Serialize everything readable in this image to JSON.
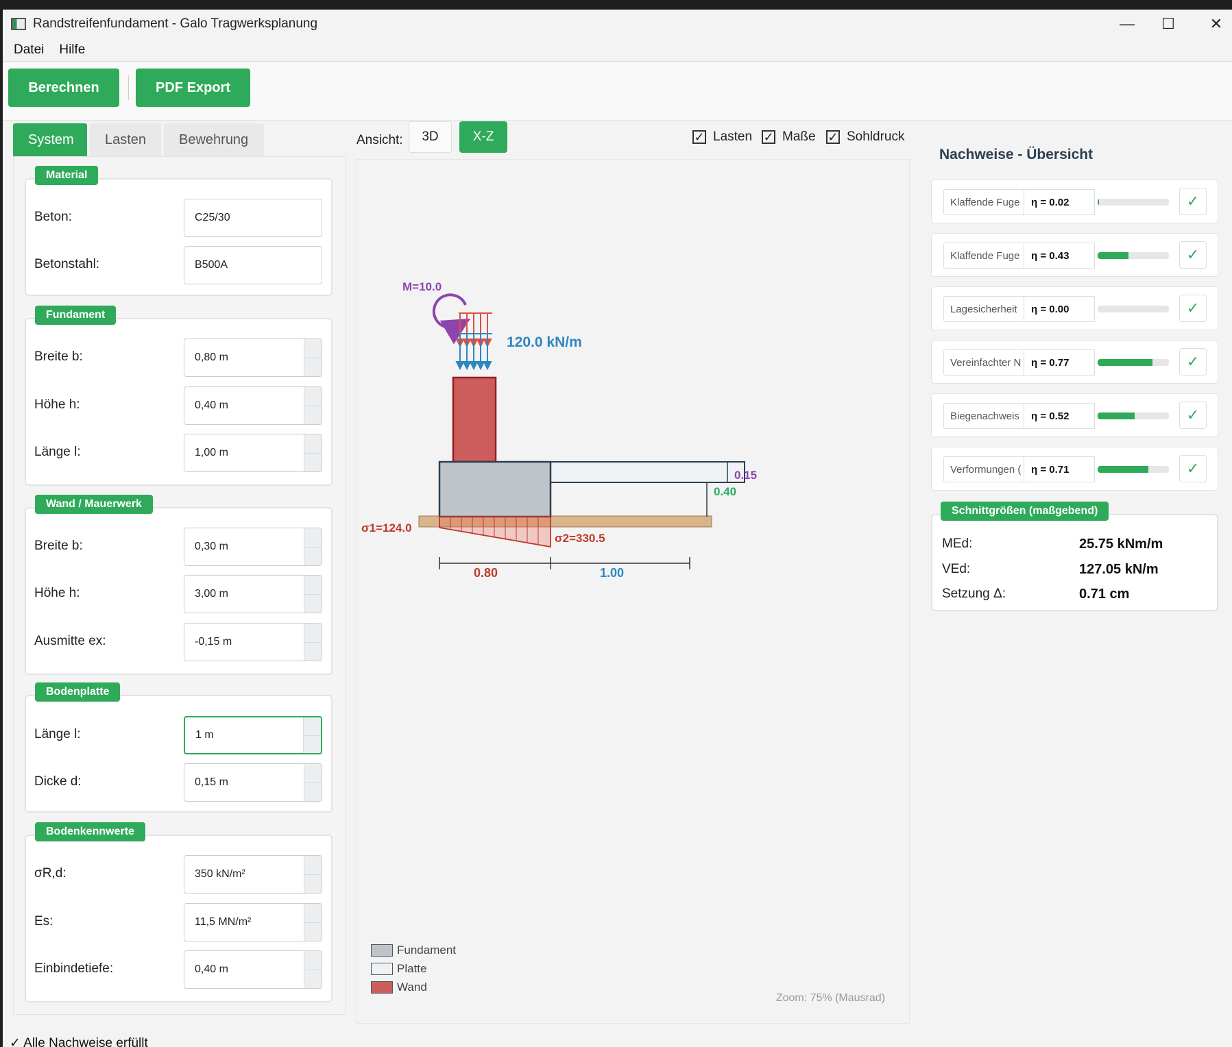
{
  "window": {
    "title": "Randstreifenfundament - Galo Tragwerksplanung",
    "minimize": "—",
    "maximize": "☐",
    "close": "✕"
  },
  "menu": {
    "file": "Datei",
    "help": "Hilfe"
  },
  "toolbar": {
    "calculate": "Berechnen",
    "pdf_export": "PDF Export"
  },
  "tabs": [
    "System",
    "Lasten",
    "Bewehrung"
  ],
  "groups": {
    "material": {
      "label": "Material",
      "fields": [
        {
          "label": "Beton:",
          "value": "C25/30"
        },
        {
          "label": "Betonstahl:",
          "value": "B500A"
        }
      ]
    },
    "fundament": {
      "label": "Fundament",
      "fields": [
        {
          "label": "Breite b:",
          "value": "0,80 m"
        },
        {
          "label": "Höhe h:",
          "value": "0,40 m"
        },
        {
          "label": "Länge l:",
          "value": "1,00 m"
        }
      ]
    },
    "wand": {
      "label": "Wand / Mauerwerk",
      "fields": [
        {
          "label": "Breite b:",
          "value": "0,30 m"
        },
        {
          "label": "Höhe h:",
          "value": "3,00 m"
        },
        {
          "label": "Ausmitte ex:",
          "value": "-0,15 m"
        }
      ]
    },
    "bodenplatte": {
      "label": "Bodenplatte",
      "fields": [
        {
          "label": "Länge l:",
          "value": "1 m"
        },
        {
          "label": "Dicke d:",
          "value": "0,15 m"
        }
      ]
    },
    "boden": {
      "label": "Bodenkennwerte",
      "fields": [
        {
          "label": "σR,d:",
          "value": "350 kN/m²"
        },
        {
          "label": "Es:",
          "value": "11,5 MN/m²"
        },
        {
          "label": "Einbindetiefe:",
          "value": "0,40 m"
        }
      ]
    }
  },
  "view": {
    "label": "Ansicht:",
    "btn_3d": "3D",
    "btn_xz": "X-Z"
  },
  "checkboxes": [
    {
      "label": "Lasten",
      "checked": true
    },
    {
      "label": "Maße",
      "checked": true
    },
    {
      "label": "Sohldruck",
      "checked": true
    }
  ],
  "diagram": {
    "moment": "M=10.0",
    "load": "120.0 kN/m",
    "sigma1": "σ1=124.0",
    "sigma2": "σ2=330.5",
    "dim_slab_thickness": "0.15",
    "dim_height": "0.40",
    "dim_width_fundament": "0.80",
    "dim_length_slab": "1.00",
    "colors": {
      "fundament": "#bfc4c9",
      "platte": "#eef2f5",
      "wand": "#cd5c5c",
      "soil": "#d9b48a",
      "load_red": "#e74c3c",
      "load_blue": "#2e86c1",
      "moment": "#8e44ad",
      "green": "#27ae60"
    }
  },
  "legend": [
    {
      "label": "Fundament",
      "color": "#bfc4c9"
    },
    {
      "label": "Platte",
      "color": "#eef2f5"
    },
    {
      "label": "Wand",
      "color": "#cd5c5c"
    }
  ],
  "zoom": "Zoom: 75% (Mausrad)",
  "checks_title": "Nachweise - Übersicht",
  "checks": [
    {
      "name": "Klaffende Fuge",
      "eta": "η = 0.02",
      "fill": 0.02,
      "ok": "✓"
    },
    {
      "name": "Klaffende Fuge",
      "eta": "η = 0.43",
      "fill": 0.43,
      "ok": "✓"
    },
    {
      "name": "Lagesicherheit",
      "eta": "η = 0.00",
      "fill": 0.0,
      "ok": "✓"
    },
    {
      "name": "Vereinfachter N",
      "eta": "η = 0.77",
      "fill": 0.77,
      "ok": "✓"
    },
    {
      "name": "Biegenachweis",
      "eta": "η = 0.52",
      "fill": 0.52,
      "ok": "✓"
    },
    {
      "name": "Verformungen (",
      "eta": "η = 0.71",
      "fill": 0.71,
      "ok": "✓"
    }
  ],
  "schnitt": {
    "label": "Schnittgrößen (maßgebend)",
    "rows": [
      {
        "k": "MEd:",
        "v": "25.75 kNm/m"
      },
      {
        "k": "VEd:",
        "v": "127.05 kN/m"
      },
      {
        "k": "Setzung Δ:",
        "v": "0.71 cm"
      }
    ]
  },
  "status": "✓ Alle Nachweise erfüllt"
}
